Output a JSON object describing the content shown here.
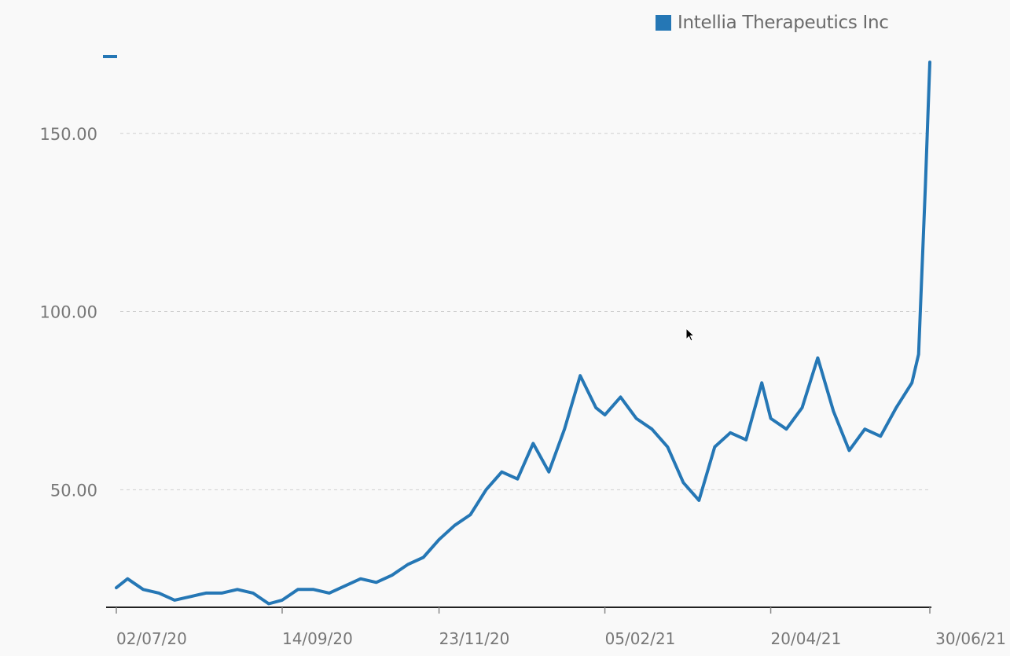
{
  "colors": {
    "series": "#2577b5",
    "grid": "#d0d0d0",
    "axis": "#222222",
    "tick_text": "#777777",
    "background": "#f9f9f9"
  },
  "legend": {
    "label": "Intellia Therapeutics Inc",
    "placement": "top-right"
  },
  "chart_data": {
    "type": "line",
    "title": "",
    "xlabel": "",
    "ylabel": "",
    "x_ticks": [
      "02/07/20",
      "14/09/20",
      "23/11/20",
      "05/02/21",
      "20/04/21",
      "30/06/21"
    ],
    "y_ticks": [
      "50.00",
      "100.00",
      "150.00"
    ],
    "y_tick_values": [
      50,
      100,
      150
    ],
    "ylim": [
      17,
      172
    ],
    "grid": "horizontal dashed",
    "series": [
      {
        "name": "Intellia Therapeutics Inc",
        "x": [
          "02/07/20",
          "07/07/20",
          "14/07/20",
          "21/07/20",
          "28/07/20",
          "04/08/20",
          "11/08/20",
          "18/08/20",
          "25/08/20",
          "01/09/20",
          "08/09/20",
          "14/09/20",
          "21/09/20",
          "28/09/20",
          "05/10/20",
          "12/10/20",
          "19/10/20",
          "26/10/20",
          "02/11/20",
          "09/11/20",
          "16/11/20",
          "23/11/20",
          "30/11/20",
          "07/12/20",
          "14/12/20",
          "21/12/20",
          "28/12/20",
          "04/01/21",
          "11/01/21",
          "18/01/21",
          "25/01/21",
          "01/02/21",
          "05/02/21",
          "12/02/21",
          "19/02/21",
          "26/02/21",
          "05/03/21",
          "12/03/21",
          "19/03/21",
          "26/03/21",
          "02/04/21",
          "09/04/21",
          "16/04/21",
          "20/04/21",
          "27/04/21",
          "04/05/21",
          "11/05/21",
          "18/05/21",
          "25/05/21",
          "01/06/21",
          "08/06/21",
          "15/06/21",
          "22/06/21",
          "25/06/21",
          "28/06/21",
          "30/06/21"
        ],
        "values": [
          22.5,
          25,
          22,
          21,
          19,
          20,
          21,
          21,
          22,
          21,
          18,
          19,
          22,
          22,
          21,
          23,
          25,
          24,
          26,
          29,
          31,
          36,
          40,
          43,
          50,
          55,
          53,
          63,
          55,
          67,
          82,
          73,
          71,
          76,
          70,
          67,
          62,
          52,
          47,
          62,
          66,
          64,
          80,
          70,
          67,
          73,
          87,
          72,
          61,
          67,
          65,
          73,
          80,
          88,
          135,
          170
        ]
      }
    ]
  }
}
